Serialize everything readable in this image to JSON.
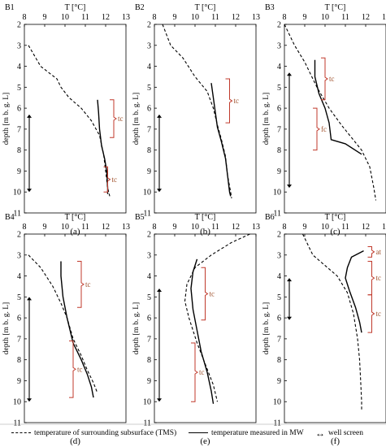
{
  "chart_data": [
    {
      "type": "line",
      "id": "B1",
      "panel_label": "(a)",
      "xlabel": "T [°C]",
      "ylabel": "depth [m b. g. L]",
      "xlim": [
        8,
        13
      ],
      "ylim": [
        2,
        11
      ],
      "x_ticks": [
        "8",
        "9",
        "10",
        "11",
        "12",
        "13"
      ],
      "y_ticks": [
        "2",
        "3",
        "4",
        "5",
        "6",
        "7",
        "8",
        "9",
        "10",
        "11"
      ],
      "series": [
        {
          "name": "temperature of surrounding subsurface (TMS)",
          "style": "dashed",
          "points": [
            [
              8.2,
              3.0
            ],
            [
              8.8,
              4.0
            ],
            [
              9.6,
              4.6
            ],
            [
              9.8,
              5.0
            ],
            [
              10.2,
              5.5
            ],
            [
              10.8,
              6.0
            ],
            [
              11.3,
              6.6
            ],
            [
              11.7,
              7.3
            ],
            [
              11.9,
              8.2
            ],
            [
              12.0,
              9.0
            ],
            [
              12.1,
              9.8
            ],
            [
              12.2,
              10.2
            ]
          ]
        },
        {
          "name": "temperature measured in MW",
          "style": "solid",
          "points": [
            [
              11.6,
              5.6
            ],
            [
              11.65,
              6.2
            ],
            [
              11.7,
              7.0
            ],
            [
              11.8,
              7.8
            ],
            [
              11.95,
              8.4
            ],
            [
              12.05,
              9.0
            ],
            [
              12.1,
              9.8
            ],
            [
              12.1,
              10.1
            ]
          ]
        }
      ],
      "annotations": [
        {
          "label": "tc",
          "depth_range": [
            5.6,
            7.4
          ],
          "x": 12.2
        },
        {
          "label": "tc",
          "depth_range": [
            8.8,
            10.0
          ],
          "x": 11.9
        }
      ],
      "well_screen": [
        6.3,
        10.0
      ]
    },
    {
      "type": "line",
      "id": "B2",
      "panel_label": "(b)",
      "xlabel": "T [°C]",
      "ylabel": "depth [m b. g. L]",
      "xlim": [
        8,
        13
      ],
      "ylim": [
        2,
        11
      ],
      "x_ticks": [
        "8",
        "9",
        "10",
        "11",
        "12",
        "13"
      ],
      "y_ticks": [
        "2",
        "3",
        "4",
        "5",
        "6",
        "7",
        "8",
        "9",
        "10",
        "11"
      ],
      "series": [
        {
          "name": "temperature of surrounding subsurface (TMS)",
          "style": "dashed",
          "points": [
            [
              8.4,
              2.0
            ],
            [
              8.8,
              3.0
            ],
            [
              9.4,
              3.6
            ],
            [
              10.0,
              4.5
            ],
            [
              10.6,
              5.2
            ],
            [
              10.9,
              6.0
            ],
            [
              11.1,
              6.8
            ],
            [
              11.3,
              7.5
            ],
            [
              11.5,
              8.3
            ],
            [
              11.6,
              9.2
            ],
            [
              11.75,
              10.0
            ],
            [
              11.8,
              10.3
            ]
          ]
        },
        {
          "name": "temperature measured in MW",
          "style": "solid",
          "points": [
            [
              10.8,
              4.8
            ],
            [
              10.9,
              5.5
            ],
            [
              11.0,
              6.2
            ],
            [
              11.1,
              6.9
            ],
            [
              11.3,
              7.6
            ],
            [
              11.5,
              8.4
            ],
            [
              11.6,
              9.2
            ],
            [
              11.7,
              10.0
            ],
            [
              11.75,
              10.2
            ]
          ]
        }
      ],
      "annotations": [
        {
          "label": "tc",
          "depth_range": [
            4.6,
            6.7
          ],
          "x": 11.5
        }
      ],
      "well_screen": [
        6.3,
        10.0
      ]
    },
    {
      "type": "line",
      "id": "B3",
      "panel_label": "(c)",
      "xlabel": "T [°C]",
      "ylabel": "depth [m b. g. L]",
      "xlim": [
        8,
        13
      ],
      "ylim": [
        2,
        11
      ],
      "x_ticks": [
        "8",
        "9",
        "10",
        "11",
        "12",
        "13"
      ],
      "y_ticks": [
        "2",
        "3",
        "4",
        "5",
        "6",
        "7",
        "8",
        "9",
        "10",
        "11"
      ],
      "series": [
        {
          "name": "temperature of surrounding subsurface (TMS)",
          "style": "dashed",
          "points": [
            [
              8.0,
              2.0
            ],
            [
              8.5,
              3.0
            ],
            [
              9.0,
              3.8
            ],
            [
              9.6,
              5.0
            ],
            [
              10.2,
              6.0
            ],
            [
              10.8,
              6.8
            ],
            [
              11.3,
              7.4
            ],
            [
              11.8,
              8.0
            ],
            [
              12.2,
              8.8
            ],
            [
              12.4,
              9.8
            ],
            [
              12.5,
              10.4
            ]
          ]
        },
        {
          "name": "temperature measured in MW",
          "style": "solid",
          "points": [
            [
              9.5,
              3.7
            ],
            [
              9.5,
              4.5
            ],
            [
              9.7,
              5.3
            ],
            [
              10.0,
              6.0
            ],
            [
              10.2,
              6.7
            ],
            [
              10.3,
              7.5
            ],
            [
              11.0,
              7.7
            ],
            [
              11.8,
              8.2
            ]
          ]
        }
      ],
      "annotations": [
        {
          "label": "tc",
          "depth_range": [
            3.6,
            5.6
          ],
          "x": 9.8
        },
        {
          "label": "fc",
          "depth_range": [
            6.0,
            8.0
          ],
          "x": 9.4
        }
      ],
      "well_screen": [
        4.3,
        9.8
      ]
    },
    {
      "type": "line",
      "id": "B4",
      "panel_label": "(d)",
      "xlabel": "T [°C]",
      "ylabel": "depth [m b. g. L]",
      "xlim": [
        8,
        13
      ],
      "ylim": [
        2,
        11
      ],
      "x_ticks": [
        "8",
        "9",
        "10",
        "11",
        "12",
        "13"
      ],
      "y_ticks": [
        "2",
        "3",
        "4",
        "5",
        "6",
        "7",
        "8",
        "9",
        "10",
        "11"
      ],
      "series": [
        {
          "name": "temperature of surrounding subsurface (TMS)",
          "style": "dashed",
          "points": [
            [
              8.2,
              3.0
            ],
            [
              8.8,
              3.6
            ],
            [
              9.4,
              4.5
            ],
            [
              9.8,
              5.3
            ],
            [
              10.1,
              6.0
            ],
            [
              10.4,
              7.0
            ],
            [
              10.8,
              7.8
            ],
            [
              11.1,
              8.5
            ],
            [
              11.4,
              9.1
            ],
            [
              11.6,
              9.6
            ]
          ]
        },
        {
          "name": "temperature measured in MW",
          "style": "solid",
          "points": [
            [
              9.8,
              3.3
            ],
            [
              9.8,
              4.0
            ],
            [
              9.9,
              5.0
            ],
            [
              10.1,
              6.0
            ],
            [
              10.4,
              7.2
            ],
            [
              10.8,
              8.0
            ],
            [
              11.1,
              8.7
            ],
            [
              11.3,
              9.3
            ],
            [
              11.4,
              9.8
            ]
          ]
        }
      ],
      "annotations": [
        {
          "label": "tc",
          "depth_range": [
            3.3,
            5.5
          ],
          "x": 10.6
        },
        {
          "label": "tc",
          "depth_range": [
            7.1,
            9.8
          ],
          "x": 10.2
        }
      ],
      "well_screen": [
        5.0,
        10.0
      ]
    },
    {
      "type": "line",
      "id": "B5",
      "panel_label": "(e)",
      "xlabel": "T [°C]",
      "ylabel": "depth [m b. g. L]",
      "xlim": [
        8,
        13
      ],
      "ylim": [
        2,
        11
      ],
      "x_ticks": [
        "8",
        "9",
        "10",
        "11",
        "12",
        "13"
      ],
      "y_ticks": [
        "2",
        "3",
        "4",
        "5",
        "6",
        "7",
        "8",
        "9",
        "10",
        "11"
      ],
      "series": [
        {
          "name": "temperature of surrounding subsurface (TMS)",
          "style": "dashed",
          "points": [
            [
              12.7,
              2.0
            ],
            [
              11.8,
              2.4
            ],
            [
              10.8,
              3.0
            ],
            [
              10.0,
              3.6
            ],
            [
              9.6,
              4.4
            ],
            [
              9.5,
              5.2
            ],
            [
              9.7,
              6.0
            ],
            [
              10.1,
              7.2
            ],
            [
              10.5,
              8.2
            ],
            [
              10.9,
              9.2
            ],
            [
              11.1,
              10.0
            ]
          ]
        },
        {
          "name": "temperature measured in MW",
          "style": "solid",
          "points": [
            [
              10.1,
              3.2
            ],
            [
              9.9,
              3.8
            ],
            [
              9.8,
              4.6
            ],
            [
              9.9,
              5.6
            ],
            [
              10.1,
              6.6
            ],
            [
              10.3,
              7.6
            ],
            [
              10.6,
              8.6
            ],
            [
              10.8,
              9.5
            ],
            [
              10.9,
              10.1
            ]
          ]
        }
      ],
      "annotations": [
        {
          "label": "tc",
          "depth_range": [
            3.6,
            6.1
          ],
          "x": 10.3
        },
        {
          "label": "tc",
          "depth_range": [
            7.2,
            10.0
          ],
          "x": 9.8
        }
      ],
      "well_screen": [
        4.6,
        10.0
      ]
    },
    {
      "type": "line",
      "id": "B6",
      "panel_label": "(f)",
      "xlabel": "T [°C]",
      "ylabel": "depth [m b. g. L]",
      "xlim": [
        8,
        13
      ],
      "ylim": [
        2,
        11
      ],
      "x_ticks": [
        "8",
        "9",
        "10",
        "11",
        "12",
        "13"
      ],
      "y_ticks": [
        "2",
        "3",
        "4",
        "5",
        "6",
        "7",
        "8",
        "9",
        "10",
        "11"
      ],
      "series": [
        {
          "name": "temperature of surrounding subsurface (TMS)",
          "style": "dashed",
          "points": [
            [
              8.9,
              2.0
            ],
            [
              9.4,
              3.0
            ],
            [
              10.0,
              3.5
            ],
            [
              10.6,
              4.0
            ],
            [
              11.1,
              4.8
            ],
            [
              11.4,
              5.8
            ],
            [
              11.6,
              7.0
            ],
            [
              11.7,
              8.0
            ],
            [
              11.75,
              9.0
            ],
            [
              11.8,
              10.0
            ],
            [
              11.8,
              10.4
            ]
          ]
        },
        {
          "name": "temperature measured in MW",
          "style": "solid",
          "points": [
            [
              11.9,
              2.8
            ],
            [
              11.3,
              3.1
            ],
            [
              11.1,
              3.6
            ],
            [
              11.0,
              4.1
            ],
            [
              11.2,
              4.7
            ],
            [
              11.5,
              5.5
            ],
            [
              11.7,
              6.2
            ],
            [
              11.8,
              6.7
            ]
          ]
        }
      ],
      "annotations": [
        {
          "label": "at",
          "depth_range": [
            2.6,
            3.1
          ],
          "x": 12.1
        },
        {
          "label": "tc",
          "depth_range": [
            3.3,
            4.9
          ],
          "x": 12.1
        },
        {
          "label": "tc",
          "depth_range": [
            4.9,
            6.7
          ],
          "x": 12.1
        }
      ],
      "well_screen": [
        4.1,
        6.1
      ]
    }
  ],
  "legend": {
    "tms_label": "temperature of surrounding subsurface (TMS)",
    "mw_label": "temperature measured in MW",
    "screen_label": "well screen"
  }
}
